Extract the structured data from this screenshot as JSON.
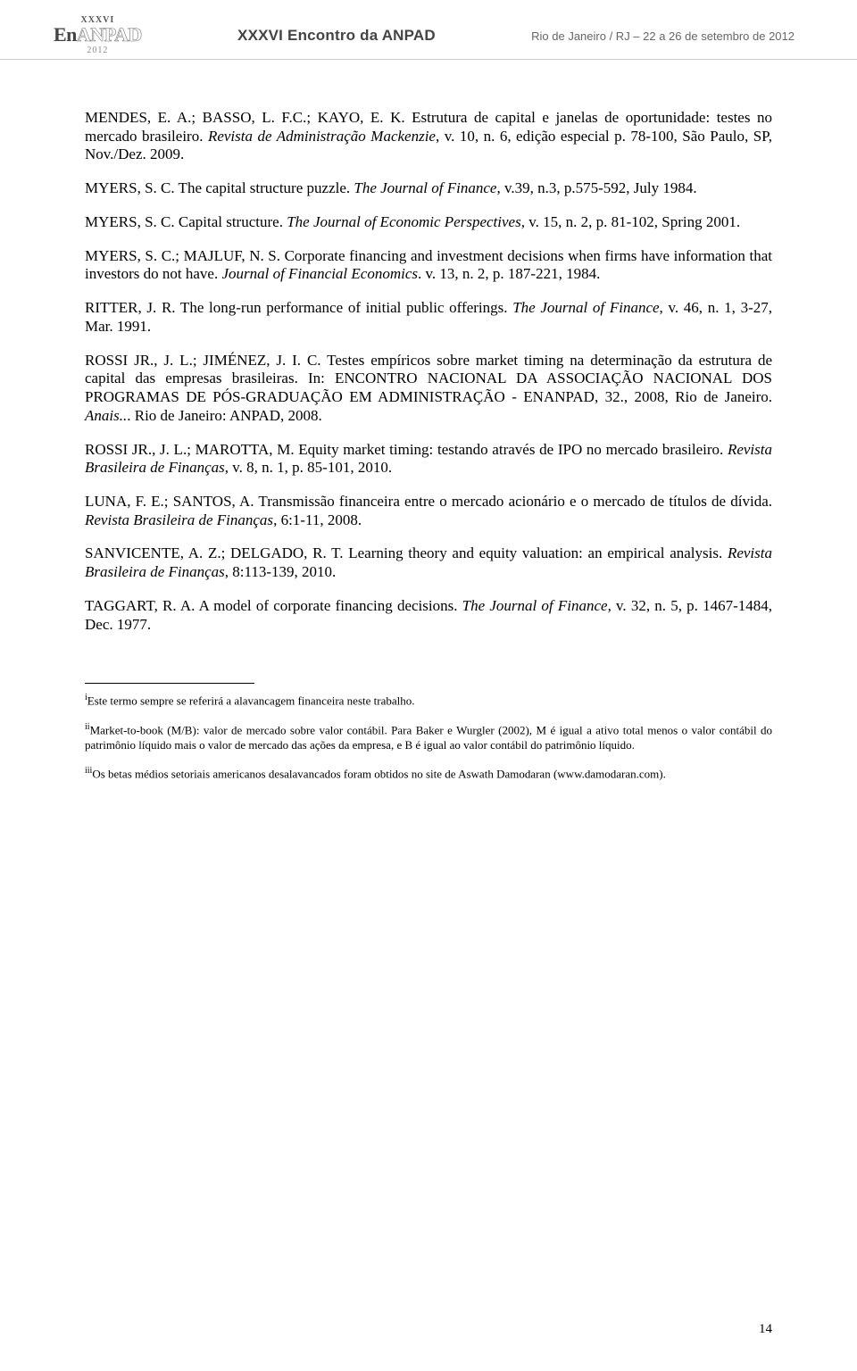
{
  "header": {
    "logo_top": "XXXVI",
    "logo_main_pre": "En",
    "logo_main_post": "ANPAD",
    "logo_year": "2012",
    "center": "XXXVI Encontro da ANPAD",
    "right": "Rio de Janeiro / RJ – 22 a 26 de setembro de 2012"
  },
  "refs": {
    "r1a": "MENDES, E. A.; BASSO, L. F.C.; KAYO, E. K. Estrutura de capital e janelas de oportunidade: testes no mercado brasileiro. ",
    "r1i": "Revista de Administração Mackenzie",
    "r1b": ", v. 10, n. 6, edição especial p. 78-100, São Paulo, SP, Nov./Dez. 2009.",
    "r2a": "MYERS, S. C. The capital structure puzzle. ",
    "r2i": "The Journal of Finance",
    "r2b": ", v.39, n.3, p.575-592, July 1984.",
    "r3a": "MYERS, S. C. Capital structure. ",
    "r3i": "The Journal of Economic Perspectives",
    "r3b": ", v. 15, n. 2, p. 81-102, Spring 2001.",
    "r4a": "MYERS, S. C.; MAJLUF, N. S. Corporate financing and investment decisions when firms have information that investors do not have. ",
    "r4i": "Journal of Financial Economics",
    "r4b": ". v. 13, n. 2, p. 187-221, 1984.",
    "r5a": "RITTER, J. R. The long-run performance of initial public offerings. ",
    "r5i": "The Journal of Finance",
    "r5b": ", v. 46, n. 1, 3-27, Mar. 1991.",
    "r6a": "ROSSI JR., J. L.; JIMÉNEZ, J. I. C. Testes empíricos sobre market timing na determinação da estrutura de capital das empresas brasileiras. In: ENCONTRO NACIONAL DA ASSOCIAÇÃO NACIONAL DOS PROGRAMAS DE PÓS-GRADUAÇÃO EM ADMINISTRAÇÃO - ENANPAD, 32., 2008, Rio de Janeiro. ",
    "r6i": "Anais..",
    "r6b": ". Rio de Janeiro: ANPAD, 2008.",
    "r7a": "ROSSI JR., J. L.; MAROTTA, M. Equity market timing: testando através de IPO no mercado brasileiro. ",
    "r7i": "Revista Brasileira de Finanças",
    "r7b": ", v. 8, n. 1, p. 85-101, 2010.",
    "r8a": "LUNA, F. E.; SANTOS, A. Transmissão financeira entre o mercado acionário e o mercado de títulos de dívida. ",
    "r8i": "Revista Brasileira de Finanças",
    "r8b": ", 6:1-11, 2008.",
    "r9a": "SANVICENTE, A. Z.; DELGADO, R. T. Learning theory and equity valuation: an empirical analysis. ",
    "r9i": "Revista Brasileira de Finanças",
    "r9b": ", 8:113-139, 2010.",
    "r10a": "TAGGART, R. A. A model of corporate financing decisions. ",
    "r10i": "The Journal of Finance",
    "r10b": ", v. 32, n. 5, p. 1467-1484, Dec. 1977."
  },
  "footnotes": {
    "f1_mark": "i",
    "f1": "Este termo sempre se referirá a alavancagem financeira neste trabalho.",
    "f2_mark": "ii",
    "f2i": "Market-to-book (M/B)",
    "f2": ": valor de mercado sobre valor contábil. Para Baker e Wurgler (2002), M é igual a ativo total menos o valor contábil do patrimônio líquido mais o valor de mercado das ações da empresa, e B é igual ao valor contábil do patrimônio líquido.",
    "f3_mark": "iii",
    "f3a": "Os betas médios setoriais americanos desalavancados foram obtidos no site de Aswath Damodaran (",
    "f3_link": "www.damodaran.com",
    "f3b": ")."
  },
  "page_number": "14"
}
